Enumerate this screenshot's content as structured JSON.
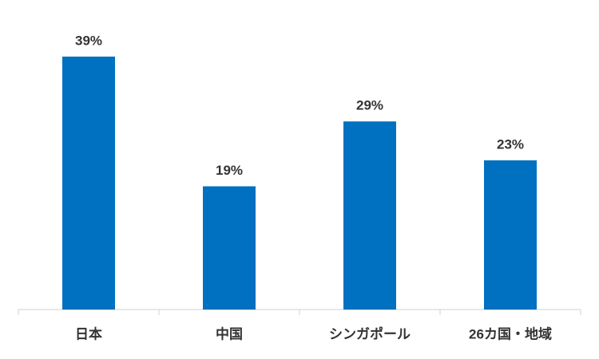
{
  "chart_data": {
    "type": "bar",
    "categories": [
      "日本",
      "中国",
      "シンガポール",
      "26カ国・地域"
    ],
    "values": [
      39,
      19,
      29,
      23
    ],
    "value_labels": [
      "39%",
      "19%",
      "29%",
      "23%"
    ],
    "color": "#0070c0"
  }
}
